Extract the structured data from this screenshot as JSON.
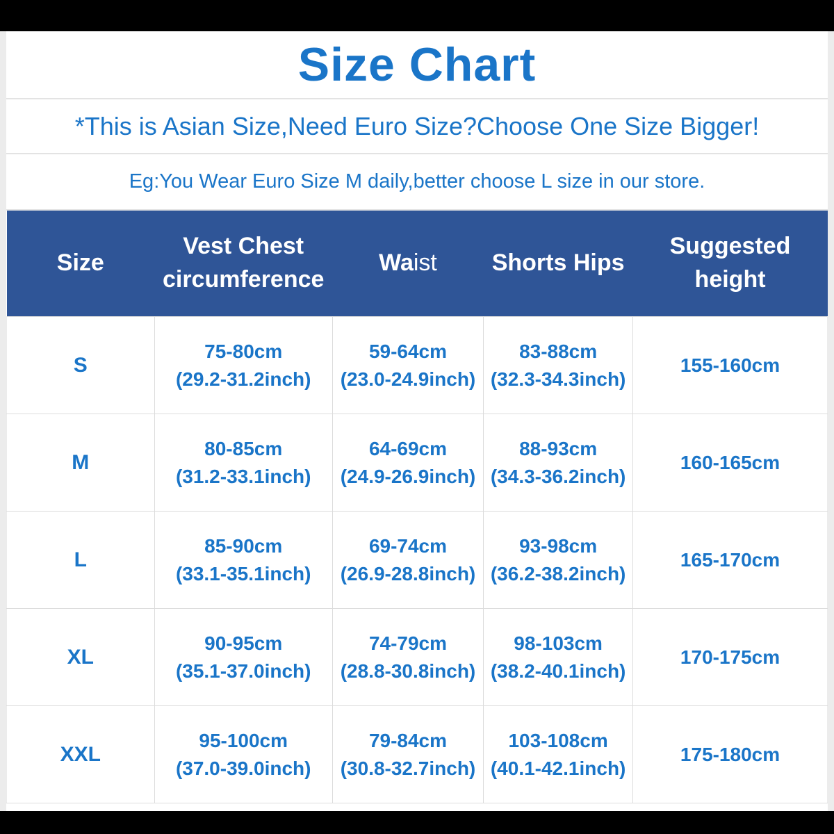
{
  "colors": {
    "header_bg": "#2f5597",
    "header_text": "#ffffff",
    "accent_blue": "#1a75c8",
    "border_grey": "#dcdcdc",
    "bar_black": "#000000"
  },
  "title": "Size Chart",
  "notes": {
    "asian_size": "*This is Asian Size,Need Euro Size?Choose One Size Bigger!",
    "example": "Eg:You Wear Euro Size M daily,better choose L size in our store."
  },
  "table": {
    "headers": {
      "size": "Size",
      "chest_line1": "Vest Chest",
      "chest_line2": "circumference",
      "waist_bold": "Wa",
      "waist_rest": "ist",
      "hips": "Shorts Hips",
      "height_line1": "Suggested",
      "height_line2": "height"
    },
    "rows": [
      {
        "size": "S",
        "chest_cm": "75-80cm",
        "chest_inch": "(29.2-31.2inch)",
        "waist_cm": "59-64cm",
        "waist_inch": "(23.0-24.9inch)",
        "hips_cm": "83-88cm",
        "hips_inch": "(32.3-34.3inch)",
        "height": "155-160cm"
      },
      {
        "size": "M",
        "chest_cm": "80-85cm",
        "chest_inch": "(31.2-33.1inch)",
        "waist_cm": "64-69cm",
        "waist_inch": "(24.9-26.9inch)",
        "hips_cm": "88-93cm",
        "hips_inch": "(34.3-36.2inch)",
        "height": "160-165cm"
      },
      {
        "size": "L",
        "chest_cm": "85-90cm",
        "chest_inch": "(33.1-35.1inch)",
        "waist_cm": "69-74cm",
        "waist_inch": "(26.9-28.8inch)",
        "hips_cm": "93-98cm",
        "hips_inch": "(36.2-38.2inch)",
        "height": "165-170cm"
      },
      {
        "size": "XL",
        "chest_cm": "90-95cm",
        "chest_inch": "(35.1-37.0inch)",
        "waist_cm": "74-79cm",
        "waist_inch": "(28.8-30.8inch)",
        "hips_cm": "98-103cm",
        "hips_inch": "(38.2-40.1inch)",
        "height": "170-175cm"
      },
      {
        "size": "XXL",
        "chest_cm": "95-100cm",
        "chest_inch": "(37.0-39.0inch)",
        "waist_cm": "79-84cm",
        "waist_inch": "(30.8-32.7inch)",
        "hips_cm": "103-108cm",
        "hips_inch": "(40.1-42.1inch)",
        "height": "175-180cm"
      }
    ]
  }
}
